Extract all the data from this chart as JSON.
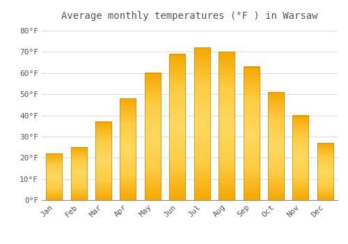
{
  "title": "Average monthly temperatures (°F ) in Warsaw",
  "months": [
    "Jan",
    "Feb",
    "Mar",
    "Apr",
    "May",
    "Jun",
    "Jul",
    "Aug",
    "Sep",
    "Oct",
    "Nov",
    "Dec"
  ],
  "values": [
    22,
    25,
    37,
    48,
    60,
    69,
    72,
    70,
    63,
    51,
    40,
    27
  ],
  "bar_color_center": "#FFCC44",
  "bar_color_edge": "#F5A800",
  "bar_edge_color": "#CC8800",
  "yticks": [
    0,
    10,
    20,
    30,
    40,
    50,
    60,
    70,
    80
  ],
  "ylim": [
    0,
    83
  ],
  "background_color": "#FFFFFF",
  "grid_color": "#DDDDDD",
  "font_color": "#555555",
  "title_fontsize": 10,
  "tick_fontsize": 8
}
